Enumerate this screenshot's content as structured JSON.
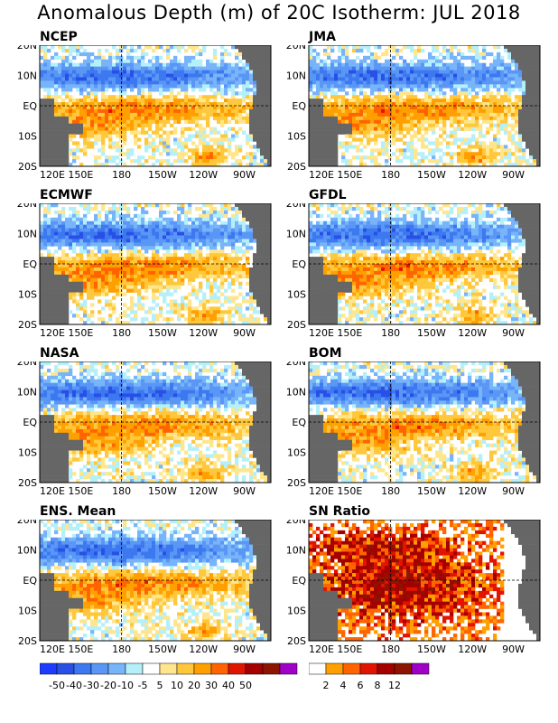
{
  "title": "Anomalous Depth (m) of 20C Isotherm: JUL 2018",
  "axes": {
    "x_ticks": [
      "120E",
      "150E",
      "180",
      "150W",
      "120W",
      "90W"
    ],
    "y_ticks": [
      "20N",
      "10N",
      "EQ",
      "10S",
      "20S"
    ]
  },
  "panels": [
    {
      "title": "NCEP",
      "kind": "anomaly",
      "seed": 11
    },
    {
      "title": "JMA",
      "kind": "anomaly",
      "seed": 23
    },
    {
      "title": "ECMWF",
      "kind": "anomaly",
      "seed": 37
    },
    {
      "title": "GFDL",
      "kind": "anomaly",
      "seed": 41
    },
    {
      "title": "NASA",
      "kind": "anomaly",
      "seed": 53
    },
    {
      "title": "BOM",
      "kind": "anomaly",
      "seed": 67
    },
    {
      "title": "ENS. Mean",
      "kind": "anomaly",
      "seed": 79
    },
    {
      "title": "SN Ratio",
      "kind": "snratio",
      "seed": 97
    }
  ],
  "chart_data": [
    {
      "type": "heatmap",
      "title": "Anomalous Depth (m) of 20C Isotherm: JUL 2018",
      "xlabel": "",
      "ylabel": "",
      "x_ticks": [
        "120E",
        "150E",
        "180",
        "150W",
        "120W",
        "90W"
      ],
      "y_ticks": [
        "20N",
        "10N",
        "EQ",
        "10S",
        "20S"
      ],
      "panels": [
        "NCEP",
        "JMA",
        "ECMWF",
        "GFDL",
        "NASA",
        "BOM",
        "ENS. Mean"
      ],
      "colorbar": {
        "labels": [
          "-50",
          "-40",
          "-30",
          "-20",
          "-10",
          "-5",
          "5",
          "10",
          "20",
          "30",
          "40",
          "50"
        ],
        "colors": [
          "#1e3cff",
          "#2850e6",
          "#3c78f0",
          "#5a96f5",
          "#78b4fa",
          "#b4f0fa",
          "#ffffff",
          "#ffe68c",
          "#ffc83c",
          "#ffa000",
          "#ff6400",
          "#e11400",
          "#a50000",
          "#8c1400",
          "#a000c8"
        ]
      }
    },
    {
      "type": "heatmap",
      "title": "SN Ratio",
      "x_ticks": [
        "120E",
        "150E",
        "180",
        "150W",
        "120W",
        "90W"
      ],
      "y_ticks": [
        "20N",
        "10N",
        "EQ",
        "10S",
        "20S"
      ],
      "colorbar": {
        "labels": [
          "2",
          "4",
          "6",
          "8",
          "12"
        ],
        "colors": [
          "#ffffff",
          "#ffa000",
          "#ff6400",
          "#e11400",
          "#a50000",
          "#8c1400",
          "#a000c8"
        ]
      }
    }
  ]
}
